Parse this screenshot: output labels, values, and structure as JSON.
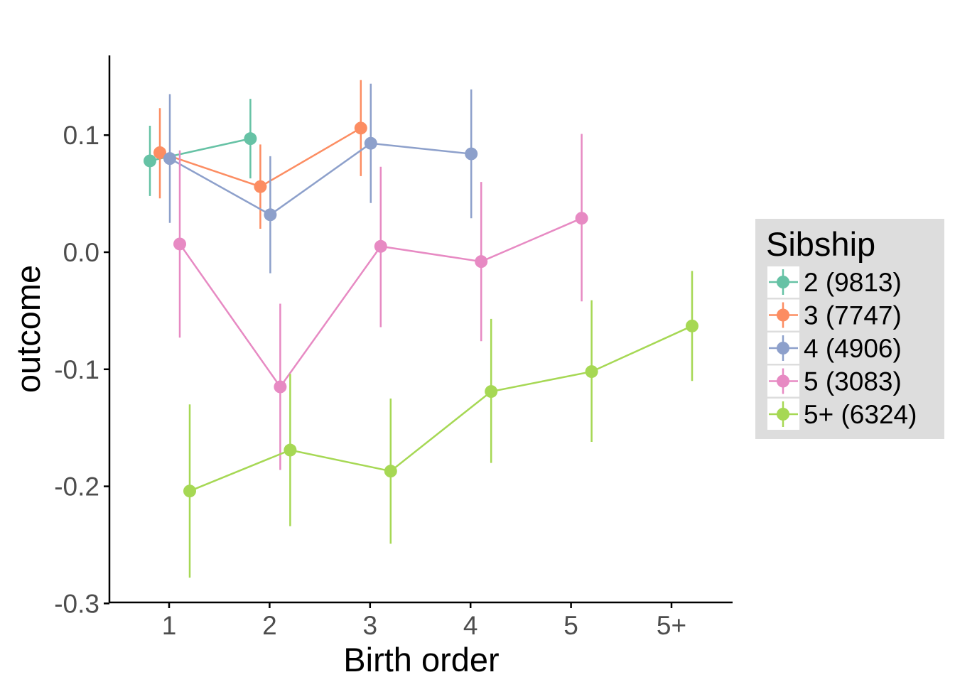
{
  "chart_data": {
    "type": "line",
    "title": "",
    "xlabel": "Birth order",
    "ylabel": "outcome",
    "categories": [
      "1",
      "2",
      "3",
      "4",
      "5",
      "5+"
    ],
    "yticks": [
      "0.1",
      "0.0",
      "-0.1",
      "-0.2",
      "-0.3"
    ],
    "ytick_values": [
      0.1,
      0.0,
      -0.1,
      -0.2,
      -0.3
    ],
    "ylim": [
      -0.3,
      0.165
    ],
    "grid": false,
    "legend": {
      "title": "Sibship",
      "position": "right"
    },
    "series": [
      {
        "name": "2 (9813)",
        "color": "#66c2a5",
        "points": [
          {
            "x": "1",
            "y": 0.078,
            "lo": 0.048,
            "hi": 0.108
          },
          {
            "x": "2",
            "y": 0.097,
            "lo": 0.063,
            "hi": 0.131
          }
        ]
      },
      {
        "name": "3 (7747)",
        "color": "#fc8d62",
        "points": [
          {
            "x": "1",
            "y": 0.085,
            "lo": 0.046,
            "hi": 0.123
          },
          {
            "x": "2",
            "y": 0.056,
            "lo": 0.02,
            "hi": 0.092
          },
          {
            "x": "3",
            "y": 0.106,
            "lo": 0.065,
            "hi": 0.147
          }
        ]
      },
      {
        "name": "4 (4906)",
        "color": "#8da0cb",
        "points": [
          {
            "x": "1",
            "y": 0.08,
            "lo": 0.025,
            "hi": 0.135
          },
          {
            "x": "2",
            "y": 0.032,
            "lo": -0.018,
            "hi": 0.082
          },
          {
            "x": "3",
            "y": 0.093,
            "lo": 0.042,
            "hi": 0.144
          },
          {
            "x": "4",
            "y": 0.084,
            "lo": 0.029,
            "hi": 0.139
          }
        ]
      },
      {
        "name": "5 (3083)",
        "color": "#e78ac3",
        "points": [
          {
            "x": "1",
            "y": 0.007,
            "lo": -0.073,
            "hi": 0.087
          },
          {
            "x": "2",
            "y": -0.115,
            "lo": -0.186,
            "hi": -0.044
          },
          {
            "x": "3",
            "y": 0.005,
            "lo": -0.064,
            "hi": 0.073
          },
          {
            "x": "4",
            "y": -0.008,
            "lo": -0.076,
            "hi": 0.06
          },
          {
            "x": "5",
            "y": 0.029,
            "lo": -0.042,
            "hi": 0.101
          }
        ]
      },
      {
        "name": "5+ (6324)",
        "color": "#a6d854",
        "points": [
          {
            "x": "1",
            "y": -0.204,
            "lo": -0.278,
            "hi": -0.13
          },
          {
            "x": "2",
            "y": -0.169,
            "lo": -0.234,
            "hi": -0.104
          },
          {
            "x": "3",
            "y": -0.187,
            "lo": -0.249,
            "hi": -0.125
          },
          {
            "x": "4",
            "y": -0.119,
            "lo": -0.18,
            "hi": -0.057
          },
          {
            "x": "5",
            "y": -0.102,
            "lo": -0.162,
            "hi": -0.041
          },
          {
            "x": "5+",
            "y": -0.063,
            "lo": -0.11,
            "hi": -0.016
          }
        ]
      }
    ]
  }
}
